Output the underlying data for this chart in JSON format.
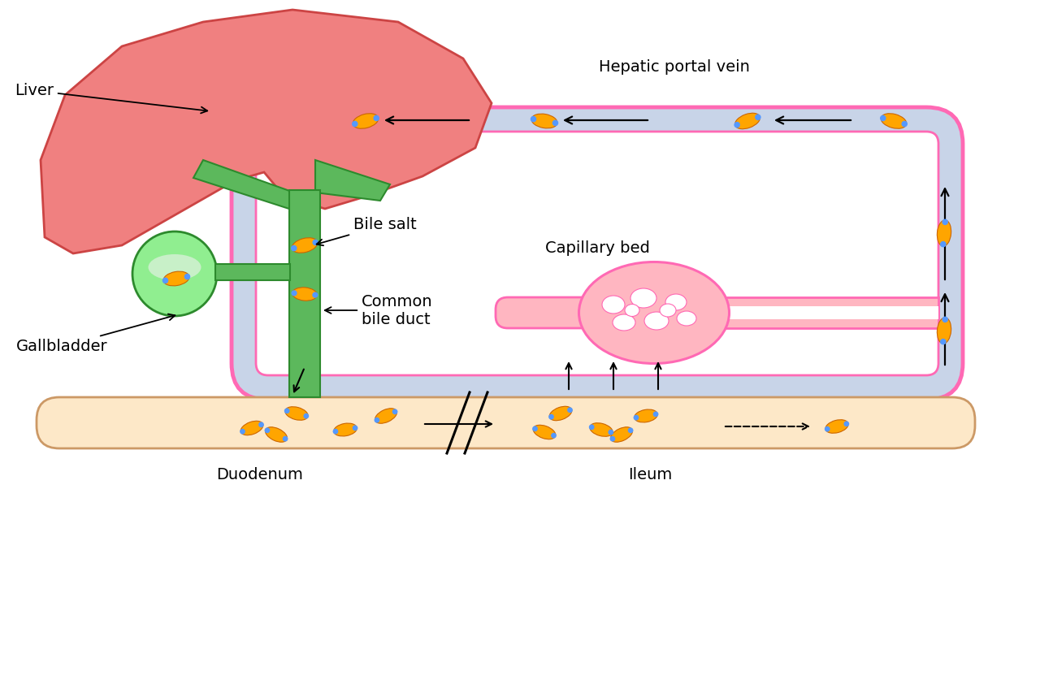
{
  "background_color": "#ffffff",
  "liver_color": "#f08080",
  "liver_outline": "#cc4444",
  "bile_duct_color": "#5cb85c",
  "bile_duct_outline": "#2d8a2d",
  "gallbladder_color": "#90ee90",
  "gallbladder_outline": "#3a9a3a",
  "intestine_color": "#fde8c8",
  "intestine_outline": "#cc9966",
  "vein_fill": "#c8d4e8",
  "vein_outline": "#ff69b4",
  "capillary_color": "#ffb6c1",
  "bile_salt_orange": "#FFA500",
  "bile_salt_blue": "#5599ff",
  "labels": {
    "liver": "Liver",
    "gallbladder": "Gallbladder",
    "bile_salt": "Bile salt",
    "common_bile_duct": "Common\nbile duct",
    "hepatic_portal_vein": "Hepatic portal vein",
    "capillary_bed": "Capillary bed",
    "duodenum": "Duodenum",
    "ileum": "Ileum"
  }
}
